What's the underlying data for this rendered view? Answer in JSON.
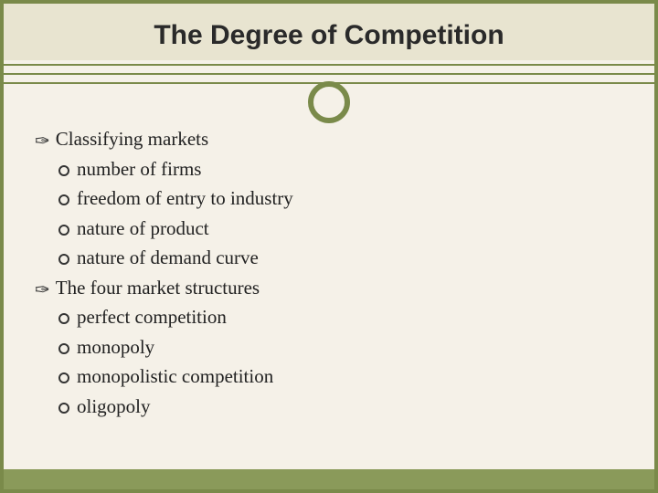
{
  "colors": {
    "border": "#7a8a4a",
    "title_bg": "#e8e4d0",
    "slide_bg": "#f5f1e8",
    "footer_bg": "#8a9a5a",
    "text": "#222222"
  },
  "title": "The Degree of Competition",
  "bullets": {
    "section1": {
      "heading": "Classifying markets",
      "items": [
        "number of firms",
        "freedom of entry to industry",
        "nature of product",
        "nature of demand curve"
      ]
    },
    "section2": {
      "heading": "The four market structures",
      "items": [
        "perfect competition",
        "monopoly",
        "monopolistic competition",
        "oligopoly"
      ]
    }
  }
}
